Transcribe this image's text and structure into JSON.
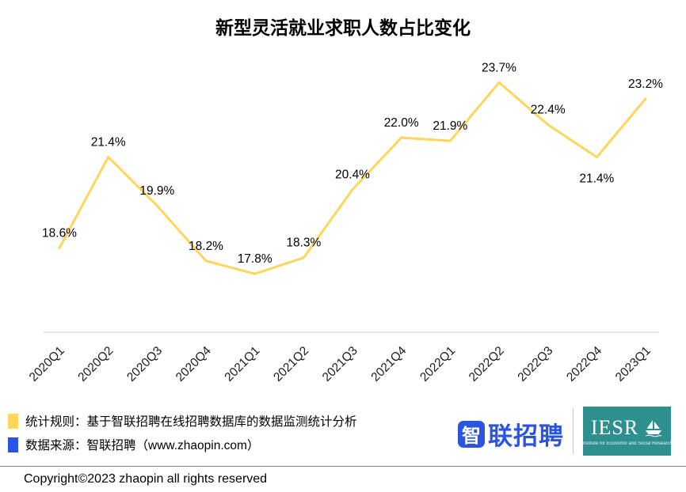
{
  "chart_data": {
    "type": "line",
    "title": "新型灵活就业求职人数占比变化",
    "categories": [
      "2020Q1",
      "2020Q2",
      "2020Q3",
      "2020Q4",
      "2021Q1",
      "2021Q2",
      "2021Q3",
      "2021Q4",
      "2022Q1",
      "2022Q2",
      "2022Q3",
      "2022Q4",
      "2023Q1"
    ],
    "values": [
      18.6,
      21.4,
      19.9,
      18.2,
      17.8,
      18.3,
      20.4,
      22.0,
      21.9,
      23.7,
      22.4,
      21.4,
      23.2
    ],
    "value_suffix": "%",
    "label_positions": [
      "above",
      "above",
      "above",
      "above",
      "above",
      "above",
      "above",
      "above",
      "above",
      "above",
      "above",
      "below",
      "above"
    ],
    "ylim": [
      16,
      25.5
    ],
    "line_color": "#FFD55A",
    "grid": false,
    "legend_position": "none",
    "xlabel": "",
    "ylabel": ""
  },
  "footer": {
    "legend": [
      {
        "color": "#FFD55A",
        "text": "统计规则：基于智联招聘在线招聘数据库的数据监测统计分析"
      },
      {
        "color": "#2b55e0",
        "text": "数据来源：智联招聘（www.zhaopin.com）"
      }
    ],
    "zhaopin_logo_first": "智",
    "zhaopin_logo_rest": "联招聘",
    "iesr_logo": "IESR",
    "iesr_sub": "Institute for Economic and Social Research",
    "copyright": "Copyright©2023 zhaopin all rights reserved"
  }
}
